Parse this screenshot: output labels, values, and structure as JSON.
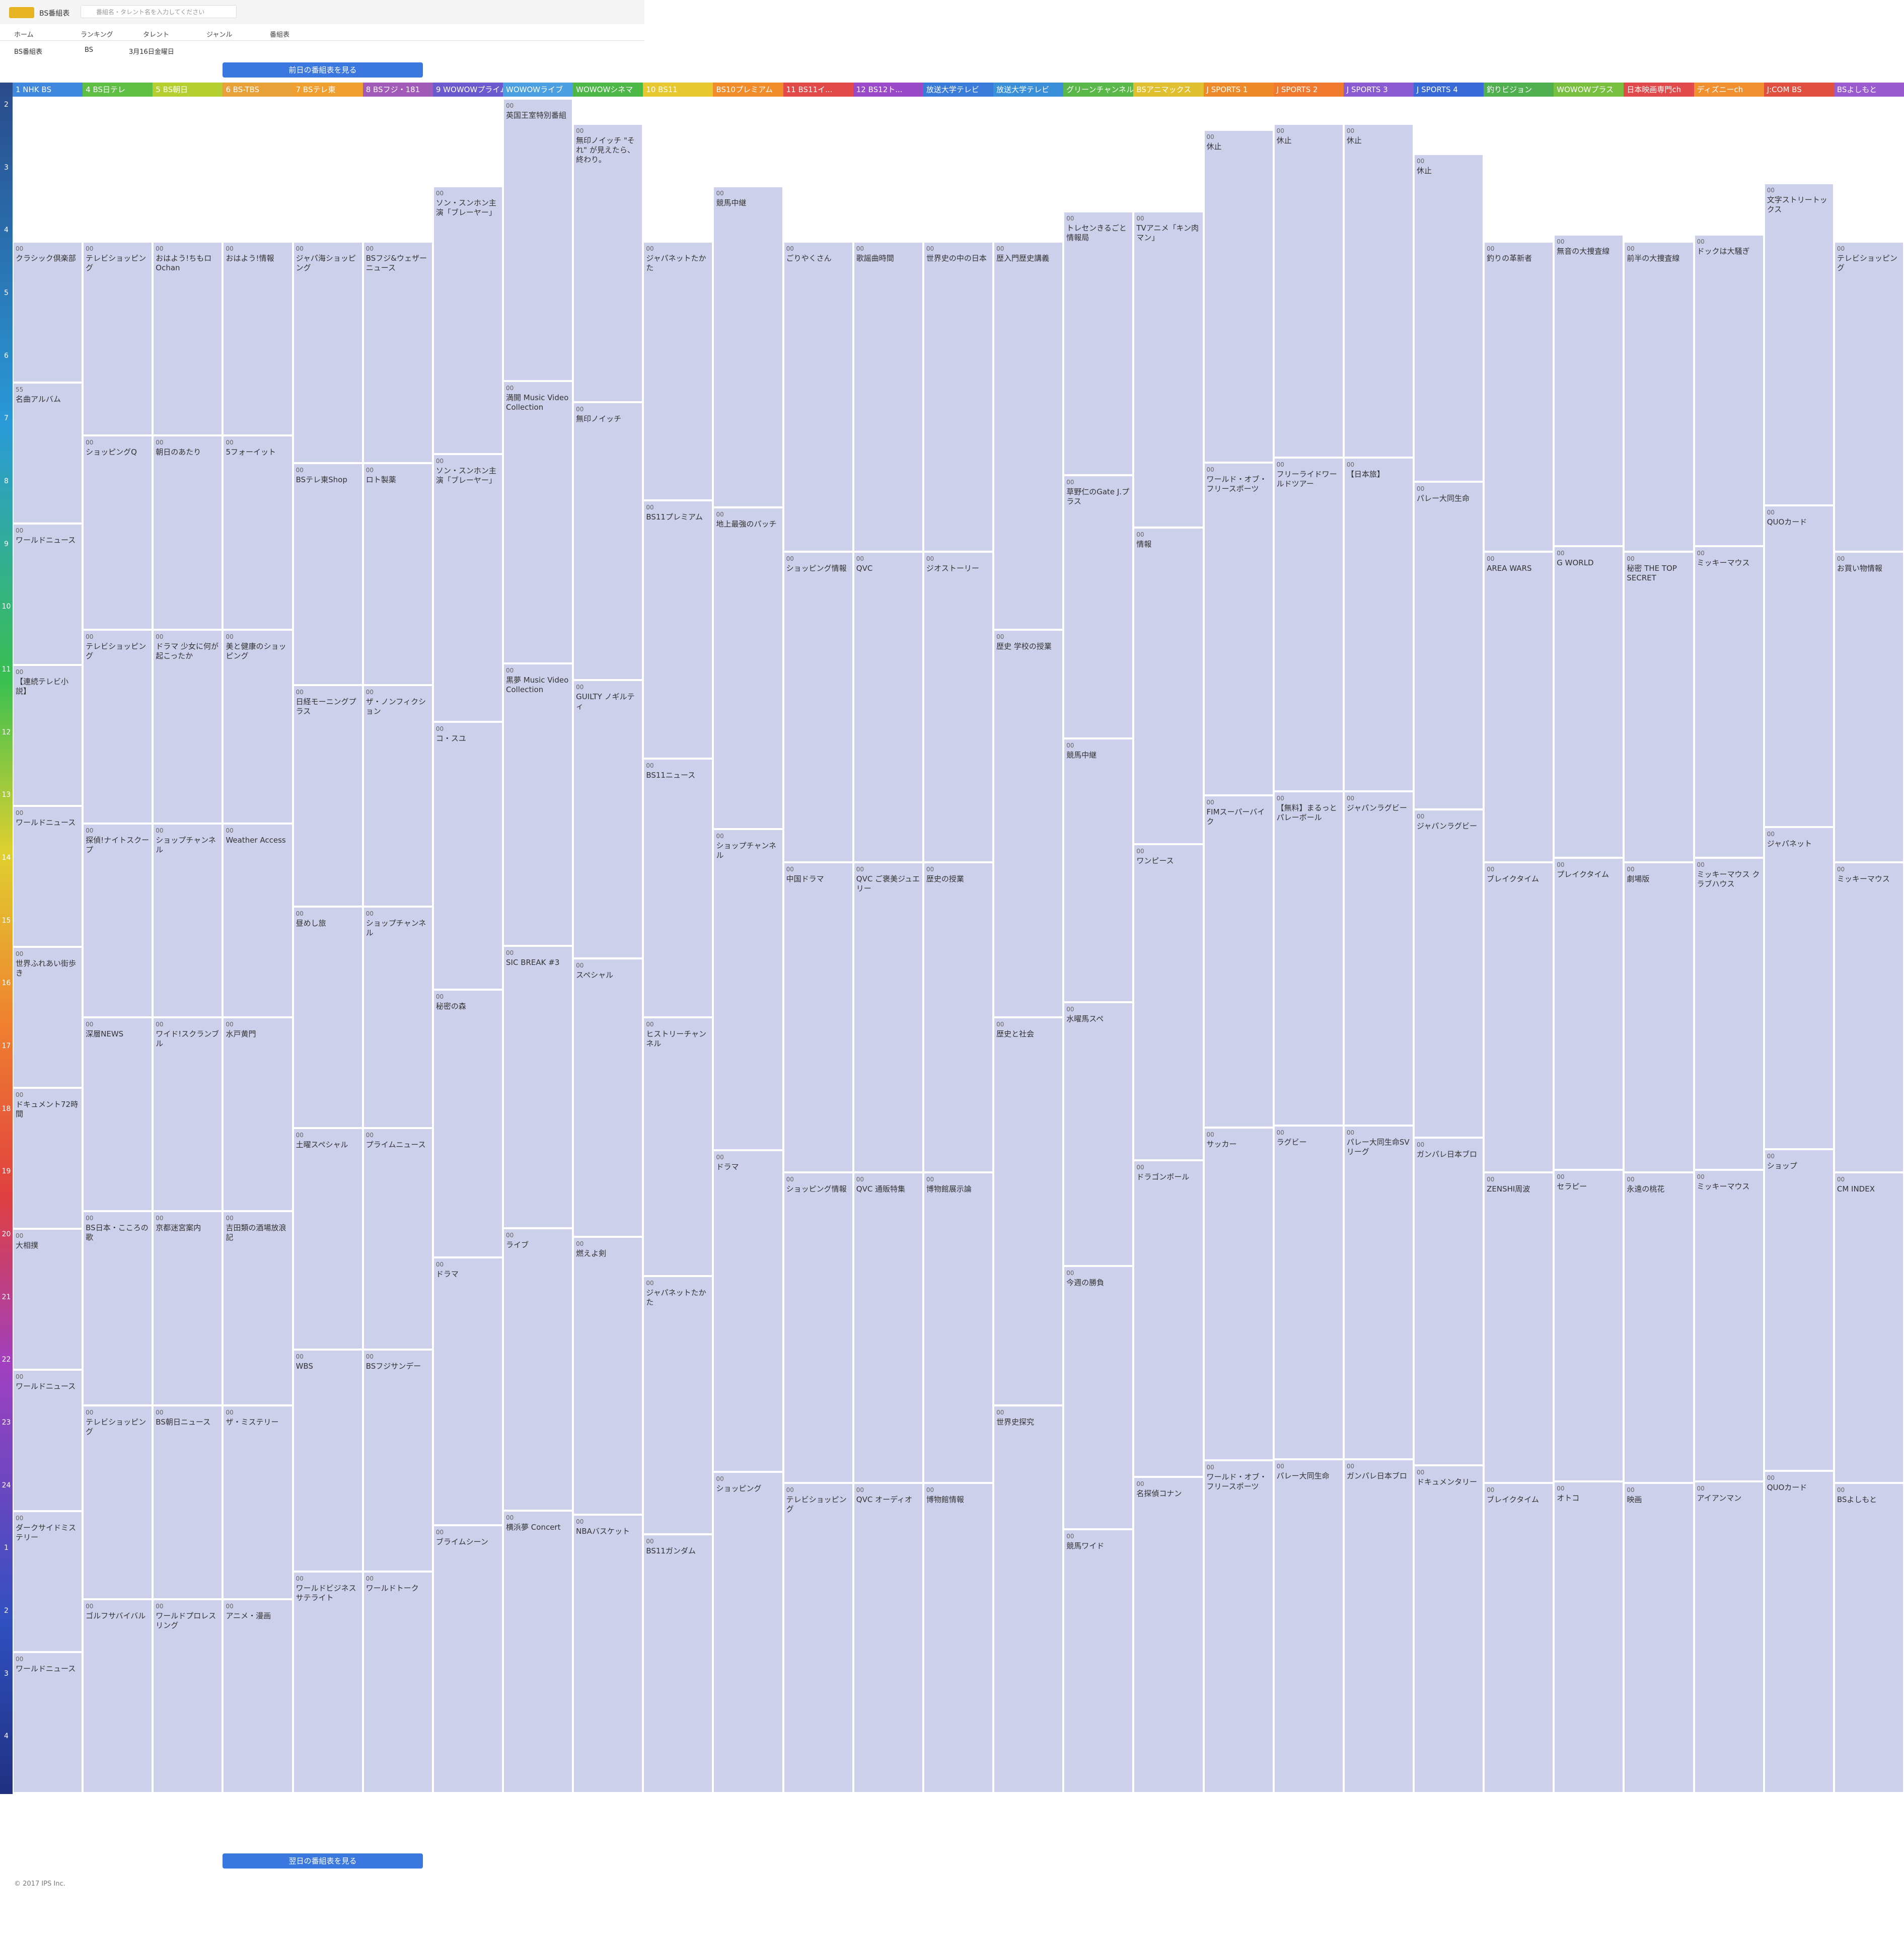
{
  "header": {
    "logo": "BS番組表",
    "search_placeholder": "番組名・タレント名を入力してください",
    "nav": [
      "ホーム",
      "ランキング",
      "タレント",
      "ジャンル",
      "番組表"
    ],
    "selects": [
      "BS番組表",
      "BS",
      "3月16日金曜日"
    ],
    "prev_button": "前日の番組表を見る",
    "next_button": "翌日の番組表を見る",
    "footer": "© 2017 IPS Inc."
  },
  "hours": [
    "2",
    "3",
    "4",
    "5",
    "6",
    "7",
    "8",
    "9",
    "10",
    "11",
    "12",
    "13",
    "14",
    "15",
    "16",
    "17",
    "18",
    "19",
    "20",
    "21",
    "22",
    "23",
    "24",
    "1",
    "2",
    "3",
    "4"
  ],
  "channels": [
    {
      "name": "1 NHK BS",
      "color": "#3f88dd",
      "programs": [
        {
          "minute": "00",
          "title": "クラシック倶楽部"
        },
        {
          "minute": "55",
          "title": "名曲アルバム"
        },
        {
          "minute": "00",
          "title": "ワールドニュース"
        },
        {
          "minute": "00",
          "title": "【連続テレビ小説】"
        },
        {
          "minute": "00",
          "title": "ワールドニュース"
        },
        {
          "minute": "00",
          "title": "世界ふれあい街歩き"
        },
        {
          "minute": "00",
          "title": "ドキュメント72時間"
        },
        {
          "minute": "00",
          "title": "大相撲"
        },
        {
          "minute": "00",
          "title": "ワールドニュース"
        },
        {
          "minute": "00",
          "title": "ダークサイドミステリー"
        },
        {
          "minute": "00",
          "title": "ワールドニュース"
        }
      ]
    },
    {
      "name": "4 BS日テレ",
      "color": "#5fbf45",
      "programs": [
        {
          "minute": "00",
          "title": "テレビショッピング"
        },
        {
          "minute": "00",
          "title": "ショッピングQ"
        },
        {
          "minute": "00",
          "title": "テレビショッピング"
        },
        {
          "minute": "00",
          "title": "探偵!ナイトスクープ"
        },
        {
          "minute": "00",
          "title": "深層NEWS"
        },
        {
          "minute": "00",
          "title": "BS日本・こころの歌"
        },
        {
          "minute": "00",
          "title": "テレビショッピング"
        },
        {
          "minute": "00",
          "title": "ゴルフサバイバル"
        }
      ]
    },
    {
      "name": "5 BS朝日",
      "color": "#b4cf2f",
      "programs": [
        {
          "minute": "00",
          "title": "おはよう!ちもロOchan"
        },
        {
          "minute": "00",
          "title": "朝日のあたり"
        },
        {
          "minute": "00",
          "title": "ドラマ 少女に何が起こったか"
        },
        {
          "minute": "00",
          "title": "ショップチャンネル"
        },
        {
          "minute": "00",
          "title": "ワイド!スクランブル"
        },
        {
          "minute": "00",
          "title": "京都迷宮案内"
        },
        {
          "minute": "00",
          "title": "BS朝日ニュース"
        },
        {
          "minute": "00",
          "title": "ワールドプロレスリング"
        }
      ]
    },
    {
      "name": "6 BS-TBS",
      "color": "#e9a23a",
      "programs": [
        {
          "minute": "00",
          "title": "おはよう!情報"
        },
        {
          "minute": "00",
          "title": "5フォーイット"
        },
        {
          "minute": "00",
          "title": "美と健康のショッピング"
        },
        {
          "minute": "00",
          "title": "Weather Access"
        },
        {
          "minute": "00",
          "title": "水戸黄門"
        },
        {
          "minute": "00",
          "title": "吉田類の酒場放浪記"
        },
        {
          "minute": "00",
          "title": "ザ・ミステリー"
        },
        {
          "minute": "00",
          "title": "アニメ・漫画"
        }
      ]
    },
    {
      "name": "7 BSテレ東",
      "color": "#f0a030",
      "programs": [
        {
          "minute": "00",
          "title": "ジャパ海ショッピング"
        },
        {
          "minute": "00",
          "title": "BSテレ東Shop"
        },
        {
          "minute": "00",
          "title": "日経モーニングプラス"
        },
        {
          "minute": "00",
          "title": "昼めし旅"
        },
        {
          "minute": "00",
          "title": "土曜スペシャル"
        },
        {
          "minute": "00",
          "title": "WBS"
        },
        {
          "minute": "00",
          "title": "ワールドビジネスサテライト"
        }
      ]
    },
    {
      "name": "8 BSフジ・181",
      "color": "#a15ab8",
      "programs": [
        {
          "minute": "00",
          "title": "BSフジ&ウェザーニュース"
        },
        {
          "minute": "00",
          "title": "ロト製薬"
        },
        {
          "minute": "00",
          "title": "ザ・ノンフィクション"
        },
        {
          "minute": "00",
          "title": "ショップチャンネル"
        },
        {
          "minute": "00",
          "title": "プライムニュース"
        },
        {
          "minute": "00",
          "title": "BSフジサンデー"
        },
        {
          "minute": "00",
          "title": "ワールドトーク"
        }
      ]
    },
    {
      "name": "9 WOWOWプライム",
      "color": "#6a5acd",
      "programs": [
        {
          "minute": "00",
          "title": "ソン・スンホン主演「ブレーヤー」"
        },
        {
          "minute": "00",
          "title": "ソン・スンホン主演「ブレーヤー」"
        },
        {
          "minute": "00",
          "title": "コ・スユ"
        },
        {
          "minute": "00",
          "title": "秘密の森"
        },
        {
          "minute": "00",
          "title": "ドラマ"
        },
        {
          "minute": "00",
          "title": "ブライムシーン"
        }
      ]
    },
    {
      "name": "WOWOWライブ",
      "color": "#4aa0e0",
      "programs": [
        {
          "minute": "00",
          "title": "英国王室特別番組"
        },
        {
          "minute": "00",
          "title": "満開 Music Video Collection"
        },
        {
          "minute": "00",
          "title": "黒夢 Music Video Collection"
        },
        {
          "minute": "00",
          "title": "SIC BREAK #3"
        },
        {
          "minute": "00",
          "title": "ライブ"
        },
        {
          "minute": "00",
          "title": "横浜夢 Concert"
        }
      ]
    },
    {
      "name": "WOWOWシネマ",
      "color": "#4db848",
      "programs": [
        {
          "minute": "00",
          "title": "無印ノイッチ \"それ\" が見えたら、終わり。"
        },
        {
          "minute": "00",
          "title": "無印ノイッチ"
        },
        {
          "minute": "00",
          "title": "GUILTY ノギルティ"
        },
        {
          "minute": "00",
          "title": "スペシャル"
        },
        {
          "minute": "00",
          "title": "燃えよ剣"
        },
        {
          "minute": "00",
          "title": "NBAバスケット"
        }
      ]
    },
    {
      "name": "10 BS11",
      "color": "#e8c830",
      "programs": [
        {
          "minute": "00",
          "title": "ジャパネットたかた"
        },
        {
          "minute": "00",
          "title": "BS11プレミアム"
        },
        {
          "minute": "00",
          "title": "BS11ニュース"
        },
        {
          "minute": "00",
          "title": "ヒストリーチャンネル"
        },
        {
          "minute": "00",
          "title": "ジャパネットたかた"
        },
        {
          "minute": "00",
          "title": "BS11ガンダム"
        }
      ]
    },
    {
      "name": "BS10プレミアム",
      "color": "#f08c2a",
      "programs": [
        {
          "minute": "00",
          "title": "競馬中継"
        },
        {
          "minute": "00",
          "title": "地上最強のパッチ"
        },
        {
          "minute": "00",
          "title": "ショップチャンネル"
        },
        {
          "minute": "00",
          "title": "ドラマ"
        },
        {
          "minute": "00",
          "title": "ショッピング"
        }
      ]
    },
    {
      "name": "11 BS11イ...",
      "color": "#e24a4a",
      "programs": [
        {
          "minute": "00",
          "title": "ごりやくさん"
        },
        {
          "minute": "00",
          "title": "ショッピング情報"
        },
        {
          "minute": "00",
          "title": "中国ドラマ"
        },
        {
          "minute": "00",
          "title": "ショッピング情報"
        },
        {
          "minute": "00",
          "title": "テレビショッピング"
        }
      ]
    },
    {
      "name": "12 BS12ト...",
      "color": "#9a4ac8",
      "programs": [
        {
          "minute": "00",
          "title": "歌謡曲時間"
        },
        {
          "minute": "00",
          "title": "QVC"
        },
        {
          "minute": "00",
          "title": "QVC ご褒美ジュエリー"
        },
        {
          "minute": "00",
          "title": "QVC 通販特集"
        },
        {
          "minute": "00",
          "title": "QVC オーディオ"
        }
      ]
    },
    {
      "name": "放送大学テレビ",
      "color": "#3a7ad8",
      "programs": [
        {
          "minute": "00",
          "title": "世界史の中の日本"
        },
        {
          "minute": "00",
          "title": "ジオストーリー"
        },
        {
          "minute": "00",
          "title": "歴史の授業"
        },
        {
          "minute": "00",
          "title": "博物館展示論"
        },
        {
          "minute": "00",
          "title": "博物館情報"
        }
      ]
    },
    {
      "name": "放送大学テレビ",
      "color": "#3a90d8",
      "programs": [
        {
          "minute": "00",
          "title": "歴入門歴史講義"
        },
        {
          "minute": "00",
          "title": "歴史 学校の授業"
        },
        {
          "minute": "00",
          "title": "歴史と社会"
        },
        {
          "minute": "00",
          "title": "世界史探究"
        }
      ]
    },
    {
      "name": "グリーンチャンネル",
      "color": "#5ab84a",
      "programs": [
        {
          "minute": "00",
          "title": "トレセンきるごと情報局"
        },
        {
          "minute": "00",
          "title": "草野仁のGate J.プラス"
        },
        {
          "minute": "00",
          "title": "競馬中継"
        },
        {
          "minute": "00",
          "title": "水曜馬スペ"
        },
        {
          "minute": "00",
          "title": "今週の勝負"
        },
        {
          "minute": "00",
          "title": "競馬ワイド"
        }
      ]
    },
    {
      "name": "BSアニマックス",
      "color": "#e0c030",
      "programs": [
        {
          "minute": "00",
          "title": "TVアニメ「キン肉マン」"
        },
        {
          "minute": "00",
          "title": "情報"
        },
        {
          "minute": "00",
          "title": "ワンピース"
        },
        {
          "minute": "00",
          "title": "ドラゴンボール"
        },
        {
          "minute": "00",
          "title": "名探偵コナン"
        }
      ]
    },
    {
      "name": "J SPORTS 1",
      "color": "#ef8a2a",
      "programs": [
        {
          "minute": "00",
          "title": "休止"
        },
        {
          "minute": "00",
          "title": "ワールド・オブ・フリースポーツ"
        },
        {
          "minute": "00",
          "title": "FIMスーパーバイク"
        },
        {
          "minute": "00",
          "title": "サッカー"
        },
        {
          "minute": "00",
          "title": "ワールド・オブ・フリースポーツ"
        }
      ]
    },
    {
      "name": "J SPORTS 2",
      "color": "#f07a30",
      "programs": [
        {
          "minute": "00",
          "title": "休止"
        },
        {
          "minute": "00",
          "title": "フリーライドワールドツアー"
        },
        {
          "minute": "00",
          "title": "【無料】まるっとパレーボール"
        },
        {
          "minute": "00",
          "title": "ラグビー"
        },
        {
          "minute": "00",
          "title": "パレー大同生命"
        }
      ]
    },
    {
      "name": "J SPORTS 3",
      "color": "#8a5ad0",
      "programs": [
        {
          "minute": "00",
          "title": "休止"
        },
        {
          "minute": "00",
          "title": "【日本旅】"
        },
        {
          "minute": "00",
          "title": "ジャパンラグビー"
        },
        {
          "minute": "00",
          "title": "パレー大同生命SVリーグ"
        },
        {
          "minute": "00",
          "title": "ガンパレ日本ブロ"
        }
      ]
    },
    {
      "name": "J SPORTS 4",
      "color": "#3a6ad8",
      "programs": [
        {
          "minute": "00",
          "title": "休止"
        },
        {
          "minute": "00",
          "title": "パレー大同生命"
        },
        {
          "minute": "00",
          "title": "ジャパンラグビー"
        },
        {
          "minute": "00",
          "title": "ガンパレ日本ブロ"
        },
        {
          "minute": "00",
          "title": "ドキュメンタリー"
        }
      ]
    },
    {
      "name": "釣りビジョン",
      "color": "#50b050",
      "programs": [
        {
          "minute": "00",
          "title": "釣りの革新者"
        },
        {
          "minute": "00",
          "title": "AREA WARS"
        },
        {
          "minute": "00",
          "title": "ブレイクタイム"
        },
        {
          "minute": "00",
          "title": "ZENSHI周波"
        },
        {
          "minute": "00",
          "title": "ブレイクタイム"
        }
      ]
    },
    {
      "name": "WOWOWプラス",
      "color": "#7ac040",
      "programs": [
        {
          "minute": "00",
          "title": "無音の大捜査線"
        },
        {
          "minute": "00",
          "title": "G WORLD"
        },
        {
          "minute": "00",
          "title": "プレイクタイム"
        },
        {
          "minute": "00",
          "title": "セラピー"
        },
        {
          "minute": "00",
          "title": "オトコ"
        }
      ]
    },
    {
      "name": "日本映画専門ch",
      "color": "#e04a4a",
      "programs": [
        {
          "minute": "00",
          "title": "前半の大捜査線"
        },
        {
          "minute": "00",
          "title": "秘密 THE TOP SECRET"
        },
        {
          "minute": "00",
          "title": "劇場版"
        },
        {
          "minute": "00",
          "title": "永遠の桃花"
        },
        {
          "minute": "00",
          "title": "映画"
        }
      ]
    },
    {
      "name": "ディズニーch",
      "color": "#f09030",
      "programs": [
        {
          "minute": "00",
          "title": "ドックは大騒ぎ"
        },
        {
          "minute": "00",
          "title": "ミッキーマウス"
        },
        {
          "minute": "00",
          "title": "ミッキーマウス クラブハウス"
        },
        {
          "minute": "00",
          "title": "ミッキーマウス"
        },
        {
          "minute": "00",
          "title": "アイアンマン"
        }
      ]
    },
    {
      "name": "J:COM BS",
      "color": "#e05040",
      "programs": [
        {
          "minute": "00",
          "title": "文字ストリートックス"
        },
        {
          "minute": "00",
          "title": "QUOカード"
        },
        {
          "minute": "00",
          "title": "ジャパネット"
        },
        {
          "minute": "00",
          "title": "ショップ"
        },
        {
          "minute": "00",
          "title": "QUOカード"
        }
      ]
    },
    {
      "name": "BSよしもと",
      "color": "#9a5ad0",
      "programs": [
        {
          "minute": "00",
          "title": "テレビショッピング"
        },
        {
          "minute": "00",
          "title": "お買い物情報"
        },
        {
          "minute": "00",
          "title": "ミッキーマウス"
        },
        {
          "minute": "00",
          "title": "CM INDEX"
        },
        {
          "minute": "00",
          "title": "BSよしもと"
        }
      ]
    }
  ]
}
